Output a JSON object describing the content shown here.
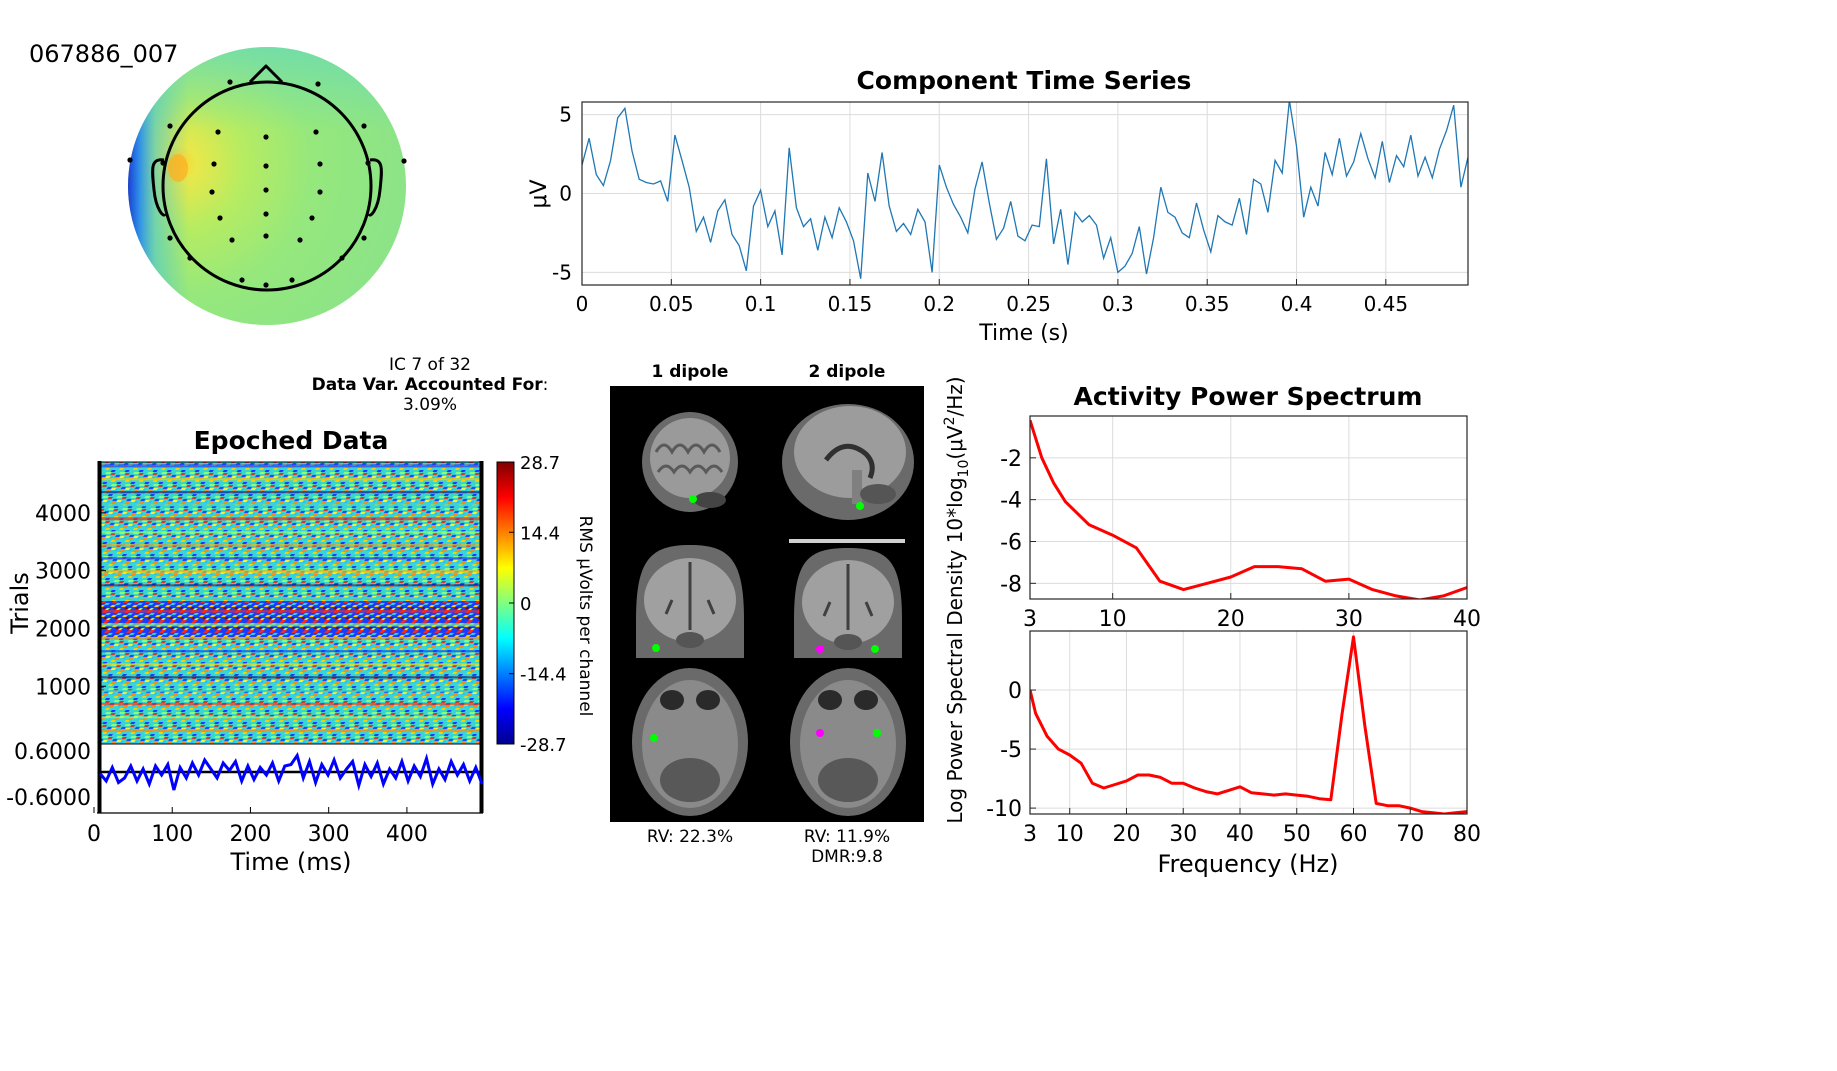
{
  "component_id": "067886_007",
  "ic_info": {
    "line1": "IC 7 of 32",
    "line2_bold": "Data Var. Accounted For",
    "line2_suffix": ":",
    "line3": "3.09%"
  },
  "colors": {
    "time_series_line": "#1f77b4",
    "spectrum_line": "#ff0000",
    "erp_line": "#0000ff",
    "grid": "#dcdcdc",
    "dipole_primary": "#00ff00",
    "dipole_secondary": "#ff00ff"
  },
  "topomap": {
    "electrode_markers": "black-dots",
    "colormap": "jet"
  },
  "dipoles": {
    "col1_title": "1 dipole",
    "col2_title": "2 dipole",
    "col1_rv": "RV: 22.3%",
    "col2_rv": "RV: 11.9%",
    "col2_dmr": "DMR:9.8"
  },
  "chart_data": [
    {
      "id": "component_time_series",
      "type": "line",
      "title": "Component Time Series",
      "xlabel": "Time (s)",
      "ylabel": "μV",
      "xlim": [
        0,
        0.496
      ],
      "ylim": [
        -5.8,
        5.8
      ],
      "xticks": [
        0,
        0.05,
        0.1,
        0.15,
        0.2,
        0.25,
        0.3,
        0.35,
        0.4,
        0.45
      ],
      "xtick_labels": [
        "0",
        "0.05",
        "0.1",
        "0.15",
        "0.2",
        "0.25",
        "0.3",
        "0.35",
        "0.4",
        "0.45"
      ],
      "yticks": [
        -5,
        0,
        5
      ],
      "grid": true,
      "x": [
        0,
        0.004,
        0.008,
        0.012,
        0.016,
        0.02,
        0.024,
        0.028,
        0.032,
        0.036,
        0.04,
        0.044,
        0.048,
        0.052,
        0.056,
        0.06,
        0.064,
        0.068,
        0.072,
        0.076,
        0.08,
        0.084,
        0.088,
        0.092,
        0.096,
        0.1,
        0.104,
        0.108,
        0.112,
        0.116,
        0.12,
        0.124,
        0.128,
        0.132,
        0.136,
        0.14,
        0.144,
        0.148,
        0.152,
        0.156,
        0.16,
        0.164,
        0.168,
        0.172,
        0.176,
        0.18,
        0.184,
        0.188,
        0.192,
        0.196,
        0.2,
        0.204,
        0.208,
        0.212,
        0.216,
        0.22,
        0.224,
        0.228,
        0.232,
        0.236,
        0.24,
        0.244,
        0.248,
        0.252,
        0.256,
        0.26,
        0.264,
        0.268,
        0.272,
        0.276,
        0.28,
        0.284,
        0.288,
        0.292,
        0.296,
        0.3,
        0.304,
        0.308,
        0.312,
        0.316,
        0.32,
        0.324,
        0.328,
        0.332,
        0.336,
        0.34,
        0.344,
        0.348,
        0.352,
        0.356,
        0.36,
        0.364,
        0.368,
        0.372,
        0.376,
        0.38,
        0.384,
        0.388,
        0.392,
        0.396,
        0.4,
        0.404,
        0.408,
        0.412,
        0.416,
        0.42,
        0.424,
        0.428,
        0.432,
        0.436,
        0.44,
        0.444,
        0.448,
        0.452,
        0.456,
        0.46,
        0.464,
        0.468,
        0.472,
        0.476,
        0.48,
        0.484,
        0.488,
        0.492,
        0.496
      ],
      "y": [
        1.8,
        3.5,
        1.2,
        0.5,
        2.1,
        4.8,
        5.4,
        2.7,
        0.9,
        0.7,
        0.6,
        0.8,
        -0.5,
        3.7,
        2.1,
        0.4,
        -2.4,
        -1.5,
        -3.1,
        -1.1,
        -0.4,
        -2.6,
        -3.3,
        -4.9,
        -0.8,
        0.2,
        -2.1,
        -1.1,
        -3.9,
        2.9,
        -0.9,
        -2.1,
        -1.6,
        -3.6,
        -1.5,
        -2.8,
        -0.9,
        -1.8,
        -3.0,
        -5.4,
        1.3,
        -0.5,
        2.6,
        -0.8,
        -2.4,
        -1.9,
        -2.6,
        -1.0,
        -1.8,
        -5.0,
        1.8,
        0.4,
        -0.7,
        -1.5,
        -2.5,
        0.3,
        2.0,
        -0.6,
        -2.9,
        -2.2,
        -0.5,
        -2.7,
        -3.0,
        -2.0,
        -2.1,
        2.2,
        -3.2,
        -1.0,
        -4.5,
        -1.2,
        -1.8,
        -1.4,
        -2.0,
        -4.1,
        -2.8,
        -5.0,
        -4.6,
        -3.8,
        -2.1,
        -5.1,
        -2.8,
        0.4,
        -1.2,
        -1.5,
        -2.5,
        -2.8,
        -0.6,
        -2.3,
        -3.7,
        -1.4,
        -1.8,
        -2.0,
        -0.3,
        -2.6,
        0.9,
        0.6,
        -1.2,
        2.1,
        1.3,
        5.9,
        3.0,
        -1.5,
        0.4,
        -0.8,
        2.6,
        1.2,
        3.5,
        1.1,
        2.0,
        3.8,
        2.2,
        1.0,
        3.3,
        0.7,
        2.4,
        1.7,
        3.7,
        1.1,
        2.3,
        1.0,
        2.8,
        4.0,
        5.6,
        0.4,
        2.3
      ]
    },
    {
      "id": "epoched_data",
      "type": "heatmap",
      "title": "Epoched Data",
      "xlabel": "Time (ms)",
      "ylabel": "Trials",
      "ytick_labels": [
        "4000",
        "3000",
        "2000",
        "1000"
      ],
      "yticks": [
        4000,
        3000,
        2000,
        1000
      ],
      "ylim": [
        1,
        4880
      ],
      "xlim": [
        0,
        496
      ],
      "colorbar": {
        "label": "RMS μVolts per channel",
        "tick_labels": [
          "28.7",
          "14.4",
          "0",
          "-14.4",
          "-28.7"
        ],
        "ticks": [
          28.7,
          14.4,
          0,
          -14.4,
          -28.7
        ],
        "range": [
          -28.7,
          28.7
        ]
      }
    },
    {
      "id": "erp",
      "type": "line",
      "xlabel": "Time (ms)",
      "xticks": [
        0,
        100,
        200,
        300,
        400
      ],
      "xtick_labels": [
        "0",
        "100",
        "200",
        "300",
        "400"
      ],
      "xlim": [
        0,
        496
      ],
      "ytick_labels": [
        "0.6000",
        "-0.6000"
      ],
      "yticks": [
        0.6,
        -0.6
      ],
      "ylim": [
        -0.9,
        0.9
      ],
      "x": [
        0,
        8,
        16,
        24,
        32,
        40,
        48,
        56,
        64,
        72,
        80,
        88,
        96,
        104,
        112,
        120,
        128,
        136,
        144,
        152,
        160,
        168,
        176,
        184,
        192,
        200,
        208,
        216,
        224,
        232,
        240,
        248,
        256,
        264,
        272,
        280,
        288,
        296,
        304,
        312,
        320,
        328,
        336,
        344,
        352,
        360,
        368,
        376,
        384,
        392,
        400,
        408,
        416,
        424,
        432,
        440,
        448,
        456,
        464,
        472,
        480,
        488,
        496
      ],
      "y": [
        -0.05,
        -0.3,
        0.15,
        -0.35,
        -0.2,
        0.2,
        -0.3,
        0.1,
        -0.4,
        0.2,
        -0.1,
        0.25,
        -0.6,
        0.15,
        -0.2,
        0.3,
        -0.1,
        0.4,
        0.1,
        -0.2,
        0.3,
        0.05,
        0.35,
        -0.3,
        0.2,
        -0.25,
        0.15,
        -0.1,
        0.3,
        -0.3,
        0.2,
        0.25,
        0.55,
        -0.2,
        0.35,
        -0.35,
        0.25,
        -0.1,
        0.4,
        -0.2,
        0.1,
        0.35,
        -0.45,
        0.25,
        -0.15,
        0.3,
        -0.4,
        0.1,
        -0.2,
        0.35,
        -0.3,
        0.2,
        -0.15,
        0.45,
        -0.4,
        0.1,
        -0.25,
        0.35,
        -0.1,
        0.25,
        -0.3,
        0.15,
        -0.4
      ]
    },
    {
      "id": "power_spectrum_top",
      "type": "line",
      "title": "Activity Power Spectrum",
      "xlim": [
        3,
        40
      ],
      "ylim": [
        -8.75,
        0
      ],
      "xticks": [
        3,
        10,
        20,
        30,
        40
      ],
      "xtick_labels": [
        "3",
        "10",
        "20",
        "30",
        "40"
      ],
      "yticks": [
        -2,
        -4,
        -6,
        -8
      ],
      "ytick_labels": [
        "-2",
        "-4",
        "-6",
        "-8"
      ],
      "grid": true,
      "x": [
        3,
        4,
        5,
        6,
        8,
        10,
        12,
        14,
        16,
        18,
        20,
        22,
        24,
        26,
        28,
        30,
        32,
        34,
        36,
        38,
        40
      ],
      "y": [
        -0.2,
        -2.0,
        -3.2,
        -4.1,
        -5.2,
        -5.7,
        -6.3,
        -7.9,
        -8.3,
        -8.0,
        -7.7,
        -7.2,
        -7.2,
        -7.3,
        -7.9,
        -7.8,
        -8.3,
        -8.6,
        -8.8,
        -8.6,
        -8.2
      ]
    },
    {
      "id": "power_spectrum_bottom",
      "type": "line",
      "xlabel": "Frequency (Hz)",
      "ylabel": "Log Power Spectral Density 10*log10(μV2/Hz)",
      "ylabel_prefix": "Log Power Spectral Density 10*log",
      "ylabel_sub": "10",
      "ylabel_mid": "(μV",
      "ylabel_sup": "2",
      "ylabel_suffix": "/Hz)",
      "xlim": [
        3,
        80
      ],
      "ylim": [
        -10.5,
        5
      ],
      "xticks": [
        3,
        10,
        20,
        30,
        40,
        50,
        60,
        70,
        80
      ],
      "xtick_labels": [
        "3",
        "10",
        "20",
        "30",
        "40",
        "50",
        "60",
        "70",
        "80"
      ],
      "yticks": [
        0,
        -5,
        -10
      ],
      "ytick_labels": [
        "0",
        "-5",
        "-10"
      ],
      "grid": true,
      "x": [
        3,
        4,
        6,
        8,
        10,
        12,
        14,
        16,
        18,
        20,
        22,
        24,
        26,
        28,
        30,
        32,
        34,
        36,
        38,
        40,
        42,
        44,
        46,
        48,
        50,
        52,
        54,
        56,
        58,
        60,
        62,
        64,
        66,
        68,
        70,
        72,
        74,
        76,
        78,
        80
      ],
      "y": [
        0,
        -2.0,
        -3.9,
        -5.0,
        -5.5,
        -6.2,
        -7.9,
        -8.3,
        -8.0,
        -7.7,
        -7.2,
        -7.2,
        -7.4,
        -7.9,
        -7.9,
        -8.3,
        -8.6,
        -8.8,
        -8.5,
        -8.2,
        -8.7,
        -8.8,
        -8.9,
        -8.8,
        -8.9,
        -9.0,
        -9.2,
        -9.3,
        -2.0,
        4.5,
        -3.0,
        -9.6,
        -9.8,
        -9.8,
        -10.0,
        -10.3,
        -10.4,
        -10.5,
        -10.4,
        -10.3
      ]
    }
  ]
}
